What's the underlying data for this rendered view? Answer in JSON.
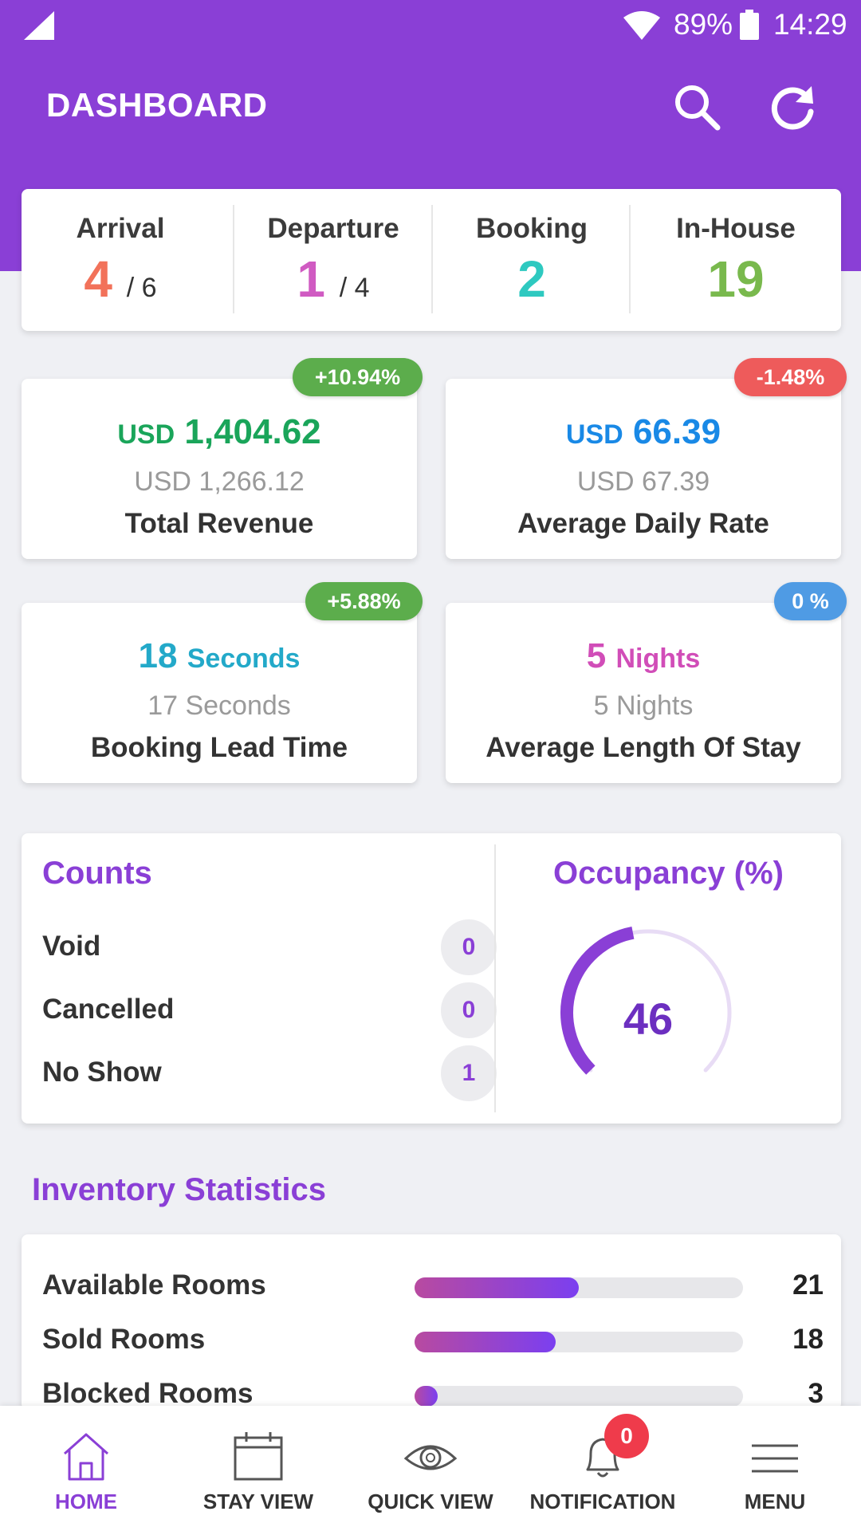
{
  "status_bar": {
    "battery": "89%",
    "time": "14:29"
  },
  "appbar": {
    "title": "DASHBOARD",
    "search_icon": "search-icon",
    "refresh_icon": "refresh-icon"
  },
  "summary": {
    "arrival": {
      "label": "Arrival",
      "value": "4",
      "total": "/ 6",
      "color": "#f2725a"
    },
    "departure": {
      "label": "Departure",
      "value": "1",
      "total": "/ 4",
      "color": "#d05bc2"
    },
    "booking": {
      "label": "Booking",
      "value": "2",
      "color": "#2ec9c0"
    },
    "in_house": {
      "label": "In-House",
      "value": "19",
      "color": "#79b94d"
    }
  },
  "stats": {
    "total_revenue": {
      "unit": "USD",
      "value": "1,404.62",
      "previous": "USD 1,266.12",
      "name": "Total Revenue",
      "change": "+10.94%",
      "color": "#1aa55a",
      "badge_color": "#5cad4c"
    },
    "average_daily_rate": {
      "unit": "USD",
      "value": "66.39",
      "previous": "USD 67.39",
      "name": "Average Daily Rate",
      "change": "-1.48%",
      "color": "#1989e6",
      "badge_color": "#ee5b5b"
    },
    "booking_lead_time": {
      "value": "18",
      "unit": "Seconds",
      "previous": "17 Seconds",
      "name": "Booking Lead Time",
      "change": "+5.88%",
      "color": "#23a9c9",
      "badge_color": "#5cad4c"
    },
    "average_length_of_stay": {
      "value": "5",
      "unit": "Nights",
      "previous": "5 Nights",
      "name": "Average Length Of Stay",
      "change": "0 %",
      "color": "#d14db8",
      "badge_color": "#4f9be4"
    }
  },
  "counts": {
    "title": "Counts",
    "rows": [
      {
        "label": "Void",
        "value": "0"
      },
      {
        "label": "Cancelled",
        "value": "0"
      },
      {
        "label": "No Show",
        "value": "1"
      }
    ]
  },
  "occupancy": {
    "title": "Occupancy (%)",
    "value": "46",
    "percent": 46
  },
  "inventory": {
    "title": "Inventory Statistics",
    "rows": [
      {
        "label": "Available Rooms",
        "value": "21",
        "fraction": 0.5
      },
      {
        "label": "Sold Rooms",
        "value": "18",
        "fraction": 0.43
      },
      {
        "label": "Blocked Rooms",
        "value": "3",
        "fraction": 0.07
      }
    ]
  },
  "nav": {
    "items": [
      {
        "label": "HOME",
        "icon": "home-icon",
        "active": true
      },
      {
        "label": "STAY VIEW",
        "icon": "calendar-icon"
      },
      {
        "label": "QUICK VIEW",
        "icon": "eye-icon"
      },
      {
        "label": "NOTIFICATION",
        "icon": "bell-icon",
        "badge": "0"
      },
      {
        "label": "MENU",
        "icon": "menu-icon"
      }
    ]
  },
  "colors": {
    "primary": "#8a3fd6",
    "background": "#eff0f4"
  }
}
